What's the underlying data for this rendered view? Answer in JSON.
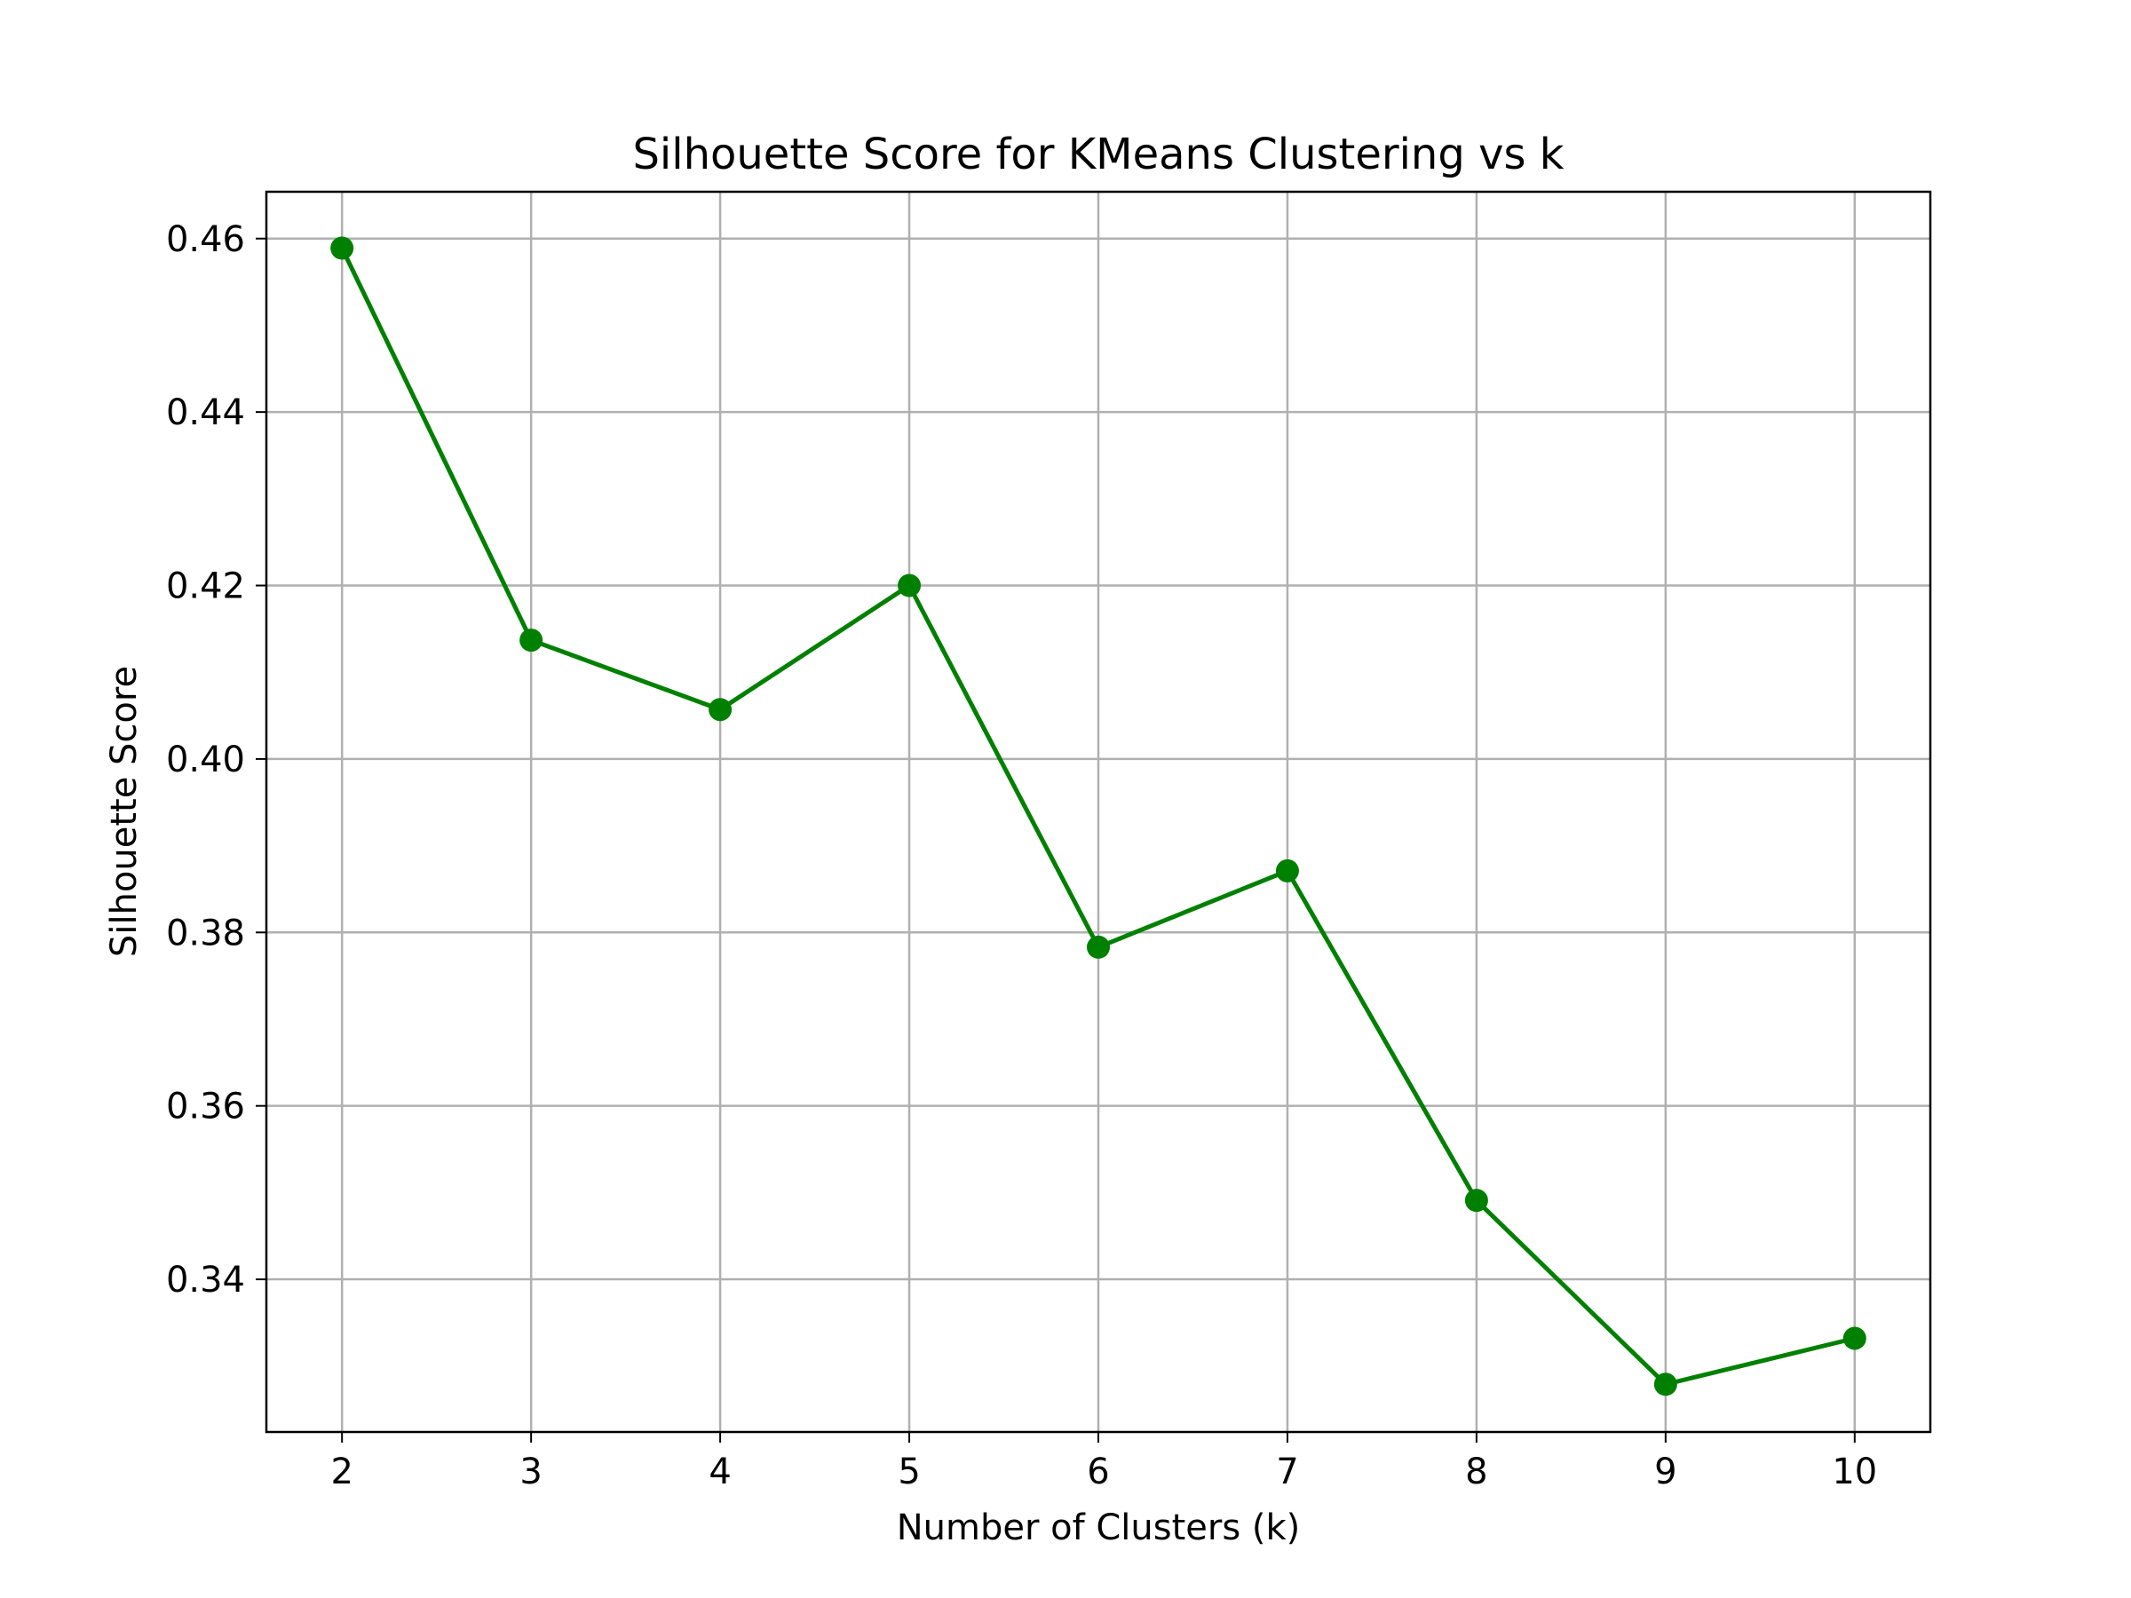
{
  "chart_data": {
    "type": "line",
    "title": "Silhouette Score for KMeans Clustering vs k",
    "xlabel": "Number of Clusters (k)",
    "ylabel": "Silhouette Score",
    "x": [
      2,
      3,
      4,
      5,
      6,
      7,
      8,
      9,
      10
    ],
    "series": [
      {
        "values": [
          0.4589,
          0.4137,
          0.4057,
          0.42,
          0.3783,
          0.3871,
          0.3491,
          0.3279,
          0.3332
        ],
        "color": "#008000",
        "marker": "circle"
      }
    ],
    "xticks": [
      2,
      3,
      4,
      5,
      6,
      7,
      8,
      9,
      10
    ],
    "xtick_labels": [
      "2",
      "3",
      "4",
      "5",
      "6",
      "7",
      "8",
      "9",
      "10"
    ],
    "yticks": [
      0.34,
      0.36,
      0.38,
      0.4,
      0.42,
      0.44,
      0.46
    ],
    "ytick_labels": [
      "0.34",
      "0.36",
      "0.38",
      "0.40",
      "0.42",
      "0.44",
      "0.46"
    ],
    "xlim": [
      1.6,
      10.4
    ],
    "ylim": [
      0.3224,
      0.4654
    ],
    "grid": true,
    "legend": false
  }
}
